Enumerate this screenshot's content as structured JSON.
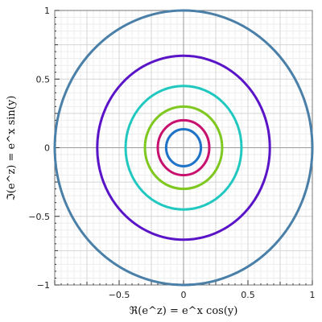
{
  "chart_data": {
    "type": "line",
    "title": "",
    "xlabel": "ℜ(e^z) = e^x cos(y)",
    "ylabel": "ℑ(e^z) = e^x sin(y)",
    "xlim": [
      -1,
      1
    ],
    "ylim": [
      -1,
      1
    ],
    "grid": true,
    "x_ticks": [
      {
        "value": -0.5,
        "label": "−0.5"
      },
      {
        "value": 0,
        "label": "0"
      },
      {
        "value": 0.5,
        "label": "0.5"
      },
      {
        "value": 1,
        "label": "1"
      }
    ],
    "y_ticks": [
      {
        "value": -1,
        "label": "−1"
      },
      {
        "value": -0.5,
        "label": "−0.5"
      },
      {
        "value": 0,
        "label": "0"
      },
      {
        "value": 0.5,
        "label": "0.5"
      },
      {
        "value": 1,
        "label": "1"
      }
    ],
    "series": [
      {
        "radius": 1.0,
        "color": "#4A7FA8"
      },
      {
        "radius": 0.67,
        "color": "#5A14C8"
      },
      {
        "radius": 0.45,
        "color": "#20C8C0"
      },
      {
        "radius": 0.3,
        "color": "#7FC820"
      },
      {
        "radius": 0.2,
        "color": "#C8106E"
      },
      {
        "radius": 0.135,
        "color": "#1E73C8"
      }
    ]
  }
}
